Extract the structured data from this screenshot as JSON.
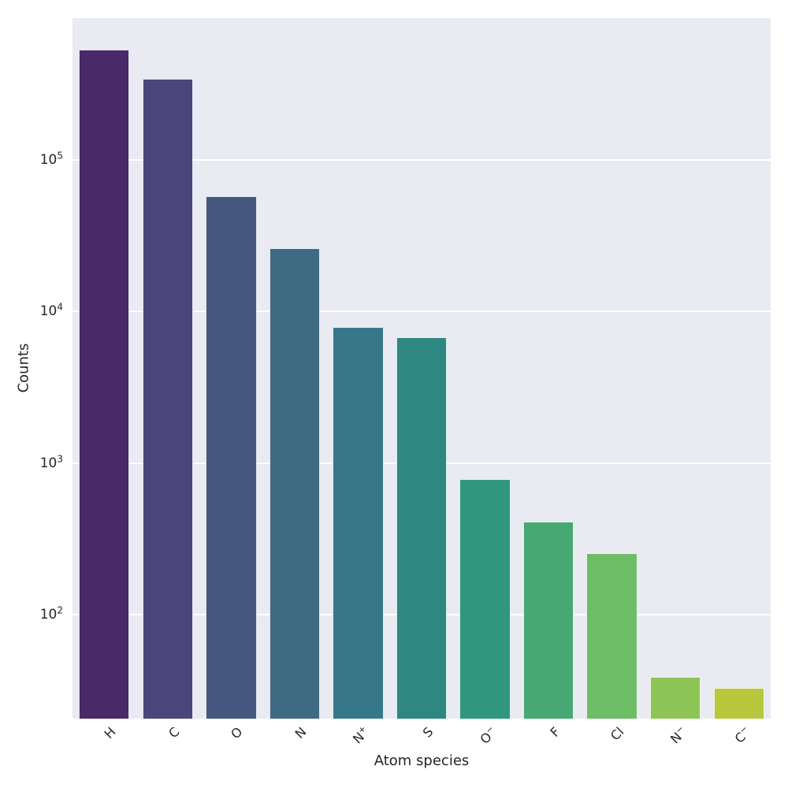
{
  "chart_data": {
    "type": "bar",
    "title": "",
    "xlabel": "Atom species",
    "ylabel": "Counts",
    "yscale": "log",
    "ylim": [
      20.6,
      864000
    ],
    "grid": true,
    "legend": false,
    "plot_bg": "#eaeaf2",
    "grid_color": "#ffffff",
    "text_color": "#262626",
    "categories": [
      {
        "name": "H",
        "base": "H",
        "sup": ""
      },
      {
        "name": "C",
        "base": "C",
        "sup": ""
      },
      {
        "name": "O",
        "base": "O",
        "sup": ""
      },
      {
        "name": "N",
        "base": "N",
        "sup": ""
      },
      {
        "name": "N+",
        "base": "N",
        "sup": "+"
      },
      {
        "name": "S",
        "base": "S",
        "sup": ""
      },
      {
        "name": "O-",
        "base": "O",
        "sup": "−"
      },
      {
        "name": "F",
        "base": "F",
        "sup": ""
      },
      {
        "name": "Cl",
        "base": "Cl",
        "sup": ""
      },
      {
        "name": "N-",
        "base": "N",
        "sup": "−"
      },
      {
        "name": "C-",
        "base": "C",
        "sup": "−"
      }
    ],
    "values": [
      535000,
      344000,
      57800,
      26200,
      7900,
      6800,
      785,
      410,
      255,
      39,
      33
    ],
    "bar_colors": [
      "#472a67",
      "#4b457c",
      "#45577e",
      "#3f6a83",
      "#36788a",
      "#2f8781",
      "#30967d",
      "#47a874",
      "#6dbd67",
      "#8cc456",
      "#b7c83d"
    ],
    "yticks": [
      {
        "value": 100,
        "base": "10",
        "exp": "2"
      },
      {
        "value": 1000,
        "base": "10",
        "exp": "3"
      },
      {
        "value": 10000,
        "base": "10",
        "exp": "4"
      },
      {
        "value": 100000,
        "base": "10",
        "exp": "5"
      }
    ]
  }
}
